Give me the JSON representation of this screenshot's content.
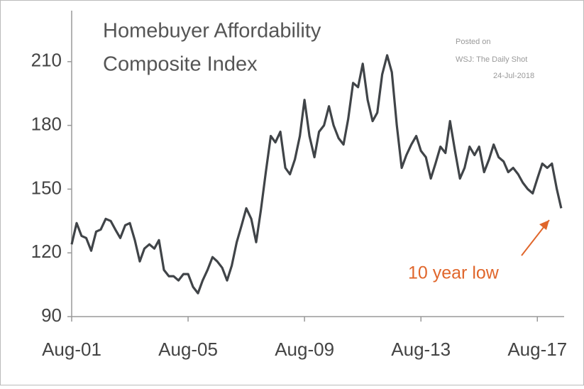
{
  "chart_data": {
    "type": "line",
    "title": [
      "Homebuyer  Affordability",
      "Composite Index"
    ],
    "source": [
      "Posted on",
      "WSJ: The Daily Shot",
      "24-Jul-2018"
    ],
    "annotation": "10 year low",
    "xlim": [
      2001.58,
      2018.5
    ],
    "ylim": [
      90,
      234
    ],
    "xticks": [
      {
        "value": 2001.58,
        "label": "Aug-01"
      },
      {
        "value": 2005.58,
        "label": "Aug-05"
      },
      {
        "value": 2009.58,
        "label": "Aug-09"
      },
      {
        "value": 2013.58,
        "label": "Aug-13"
      },
      {
        "value": 2017.58,
        "label": "Aug-17"
      }
    ],
    "yticks": [
      90,
      120,
      150,
      180,
      210
    ],
    "series": [
      {
        "color": "#404448",
        "x": [
          2001.58,
          2001.75,
          2001.92,
          2002.08,
          2002.25,
          2002.42,
          2002.58,
          2002.75,
          2002.92,
          2003.08,
          2003.25,
          2003.42,
          2003.58,
          2003.75,
          2003.92,
          2004.08,
          2004.25,
          2004.42,
          2004.58,
          2004.75,
          2004.92,
          2005.08,
          2005.25,
          2005.42,
          2005.58,
          2005.75,
          2005.92,
          2006.08,
          2006.25,
          2006.42,
          2006.58,
          2006.75,
          2006.92,
          2007.08,
          2007.25,
          2007.42,
          2007.58,
          2007.75,
          2007.92,
          2008.08,
          2008.25,
          2008.42,
          2008.58,
          2008.75,
          2008.92,
          2009.08,
          2009.25,
          2009.42,
          2009.58,
          2009.75,
          2009.92,
          2010.08,
          2010.25,
          2010.42,
          2010.58,
          2010.75,
          2010.92,
          2011.08,
          2011.25,
          2011.42,
          2011.58,
          2011.75,
          2011.92,
          2012.08,
          2012.25,
          2012.42,
          2012.58,
          2012.75,
          2012.92,
          2013.08,
          2013.25,
          2013.42,
          2013.58,
          2013.75,
          2013.92,
          2014.08,
          2014.25,
          2014.42,
          2014.58,
          2014.75,
          2014.92,
          2015.08,
          2015.25,
          2015.42,
          2015.58,
          2015.75,
          2015.92,
          2016.08,
          2016.25,
          2016.42,
          2016.58,
          2016.75,
          2016.92,
          2017.08,
          2017.25,
          2017.42,
          2017.58,
          2017.75,
          2017.92,
          2018.08,
          2018.25,
          2018.4
        ],
        "values": [
          124,
          134,
          128,
          127,
          121,
          130,
          131,
          136,
          135,
          131,
          127,
          133,
          134,
          126,
          116,
          122,
          124,
          122,
          126,
          112,
          109,
          109,
          107,
          110,
          110,
          104,
          101,
          107,
          112,
          118,
          116,
          113,
          107,
          114,
          125,
          133,
          141,
          136,
          125,
          140,
          158,
          175,
          172,
          177,
          160,
          157,
          164,
          175,
          192,
          175,
          165,
          177,
          180,
          189,
          180,
          174,
          171,
          183,
          200,
          198,
          209,
          192,
          182,
          186,
          204,
          213,
          205,
          180,
          160,
          166,
          171,
          175,
          168,
          165,
          155,
          162,
          170,
          167,
          182,
          168,
          155,
          160,
          170,
          166,
          170,
          158,
          164,
          171,
          165,
          163,
          158,
          160,
          157,
          153,
          150,
          148,
          155,
          162,
          160,
          162,
          150,
          141
        ]
      }
    ]
  }
}
